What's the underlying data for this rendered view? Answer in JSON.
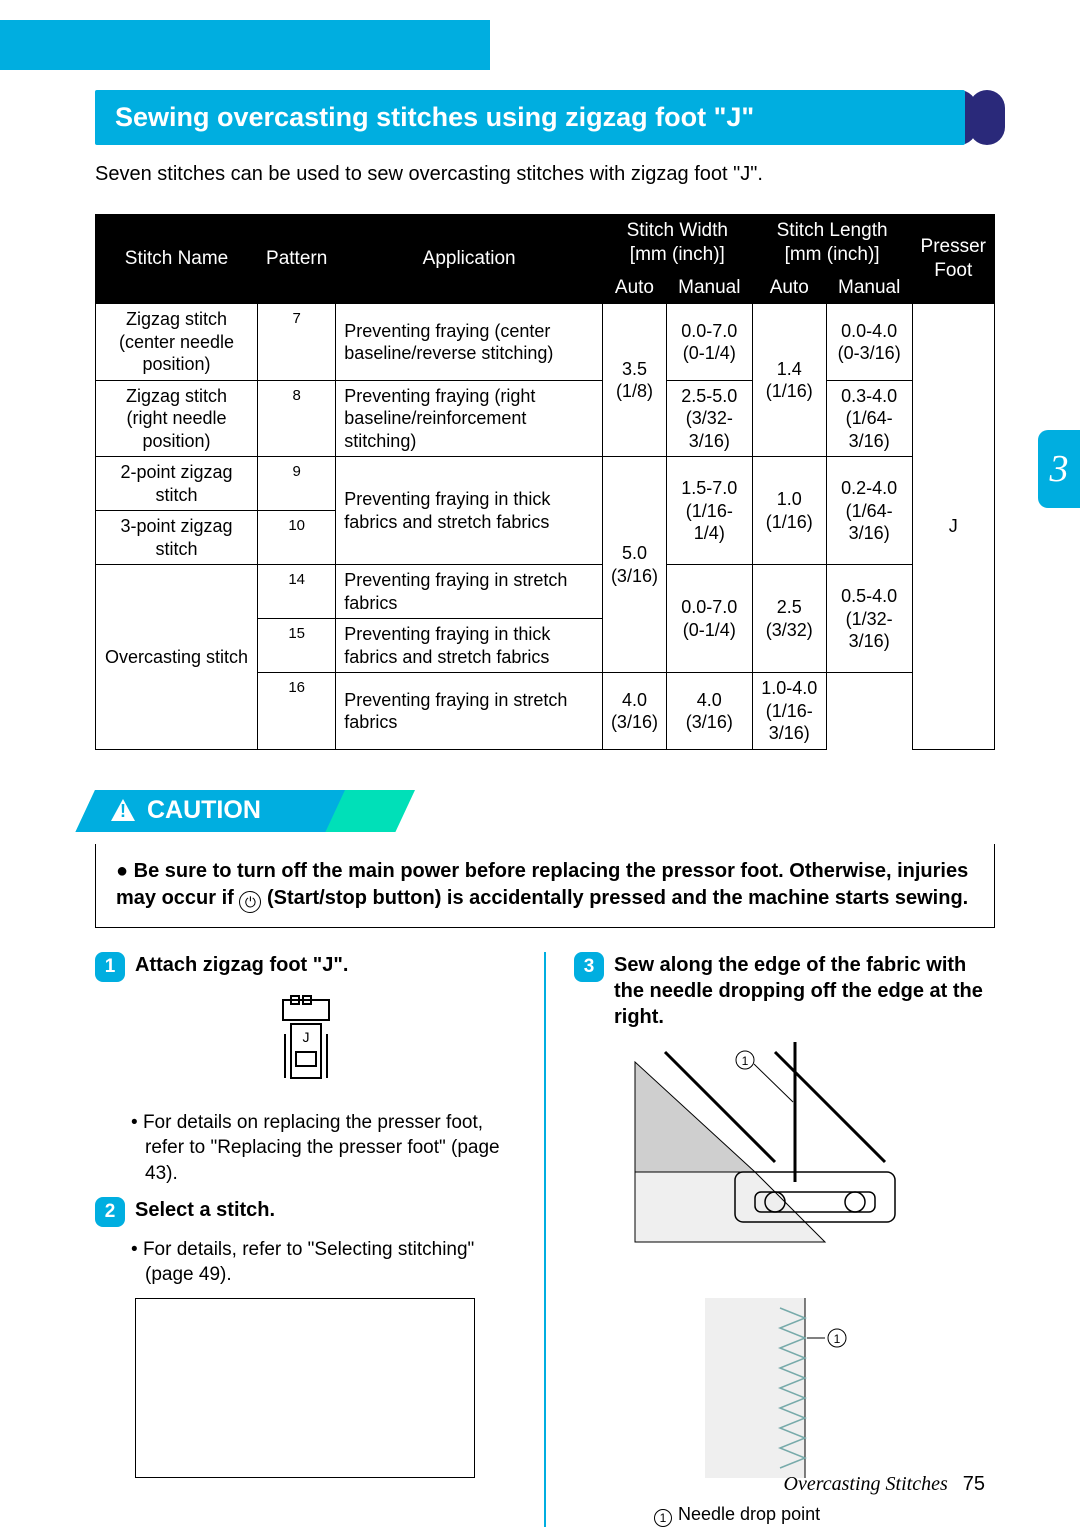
{
  "section": {
    "title": "Sewing overcasting stitches using zigzag foot \"J\"",
    "intro": "Seven stitches can be used to sew overcasting stitches with zigzag foot \"J\"."
  },
  "side_tab": "3",
  "table": {
    "headers": {
      "stitch_name": "Stitch Name",
      "pattern": "Pattern",
      "application": "Application",
      "stitch_width": "Stitch Width\n[mm (inch)]",
      "stitch_length": "Stitch Length\n[mm (inch)]",
      "presser_foot": "Presser\nFoot",
      "auto": "Auto",
      "manual": "Manual"
    },
    "rows": [
      {
        "name": "Zigzag stitch (center needle position)",
        "pattern": "7",
        "app": "Preventing fraying (center baseline/reverse stitching)",
        "w_auto": "3.5\n(1/8)",
        "w_man": "0.0-7.0\n(0-1/4)",
        "l_auto": "1.4\n(1/16)",
        "l_man": "0.0-4.0\n(0-3/16)"
      },
      {
        "name": "Zigzag stitch (right needle position)",
        "pattern": "8",
        "app": "Preventing fraying (right baseline/reinforcement stitching)",
        "w_man": "2.5-5.0\n(3/32-3/16)",
        "l_man": "0.3-4.0\n(1/64-3/16)"
      },
      {
        "name": "2-point zigzag stitch",
        "pattern": "9",
        "app": "Preventing fraying in thick fabrics and stretch fabrics",
        "w_auto": "5.0\n(3/16)",
        "w_man": "1.5-7.0\n(1/16-1/4)",
        "l_auto": "1.0\n(1/16)",
        "l_man": "0.2-4.0\n(1/64-3/16)"
      },
      {
        "name": "3-point zigzag stitch",
        "pattern": "10"
      },
      {
        "name": "Overcasting stitch",
        "pattern": "14",
        "app": "Preventing fraying in stretch fabrics",
        "w_man": "0.0-7.0\n(0-1/4)",
        "l_auto": "2.5\n(3/32)",
        "l_man": "0.5-4.0\n(1/32-3/16)"
      },
      {
        "pattern": "15",
        "app": "Preventing fraying in thick fabrics and stretch fabrics"
      },
      {
        "pattern": "16",
        "app": "Preventing fraying in stretch fabrics",
        "w_auto": "4.0\n(3/16)",
        "l_auto": "4.0\n(3/16)",
        "l_man": "1.0-4.0\n(1/16-3/16)"
      }
    ],
    "presser_foot_value": "J"
  },
  "caution": {
    "label": "CAUTION",
    "body": "Be sure to turn off the main power before replacing the pressor foot. Otherwise, injuries may occur if ",
    "body2": " (Start/stop button) is accidentally pressed and the machine starts sewing.",
    "power_icon_alt": "power"
  },
  "steps": {
    "s1": {
      "num": "1",
      "title": "Attach zigzag foot \"J\".",
      "bullet": "For details on replacing the presser foot, refer to \"Replacing the presser foot\" (page 43)."
    },
    "s2": {
      "num": "2",
      "title": "Select a stitch.",
      "bullet": "For details, refer to \"Selecting stitching\" (page 49)."
    },
    "s3": {
      "num": "3",
      "title": "Sew along the edge of the fabric with the needle dropping off the edge at the right.",
      "legend": "Needle drop point"
    }
  },
  "footer": {
    "section": "Overcasting Stitches",
    "page": "75"
  },
  "colors": {
    "accent": "#00aee0",
    "dark": "#2a297a",
    "caution_tail": "#00e0b8"
  }
}
